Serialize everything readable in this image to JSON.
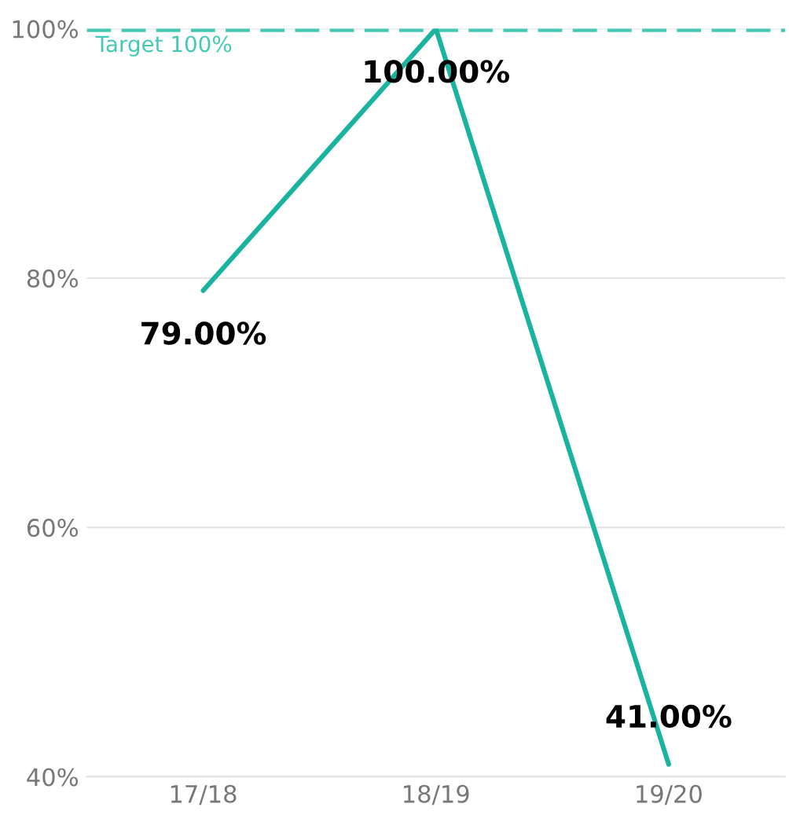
{
  "chart_data": {
    "type": "line",
    "categories": [
      "17/18",
      "18/19",
      "19/20"
    ],
    "series": [
      {
        "color": "#1ab39f",
        "values": [
          79,
          100,
          41
        ],
        "value_labels": [
          "79.00%",
          "100.00%",
          "41.00%"
        ]
      }
    ],
    "ylim": [
      40,
      100
    ],
    "yticks": [
      {
        "value": 40,
        "label": "40%"
      },
      {
        "value": 60,
        "label": "60%"
      },
      {
        "value": 80,
        "label": "80%"
      },
      {
        "value": 100,
        "label": "100%"
      }
    ],
    "grid": "y",
    "marker": "none",
    "line_style": "solid",
    "ref_lines": [
      {
        "axis": "y",
        "value": 100,
        "label": "Target 100%",
        "color": "#45c9b5",
        "line_style": "dashed"
      }
    ]
  }
}
